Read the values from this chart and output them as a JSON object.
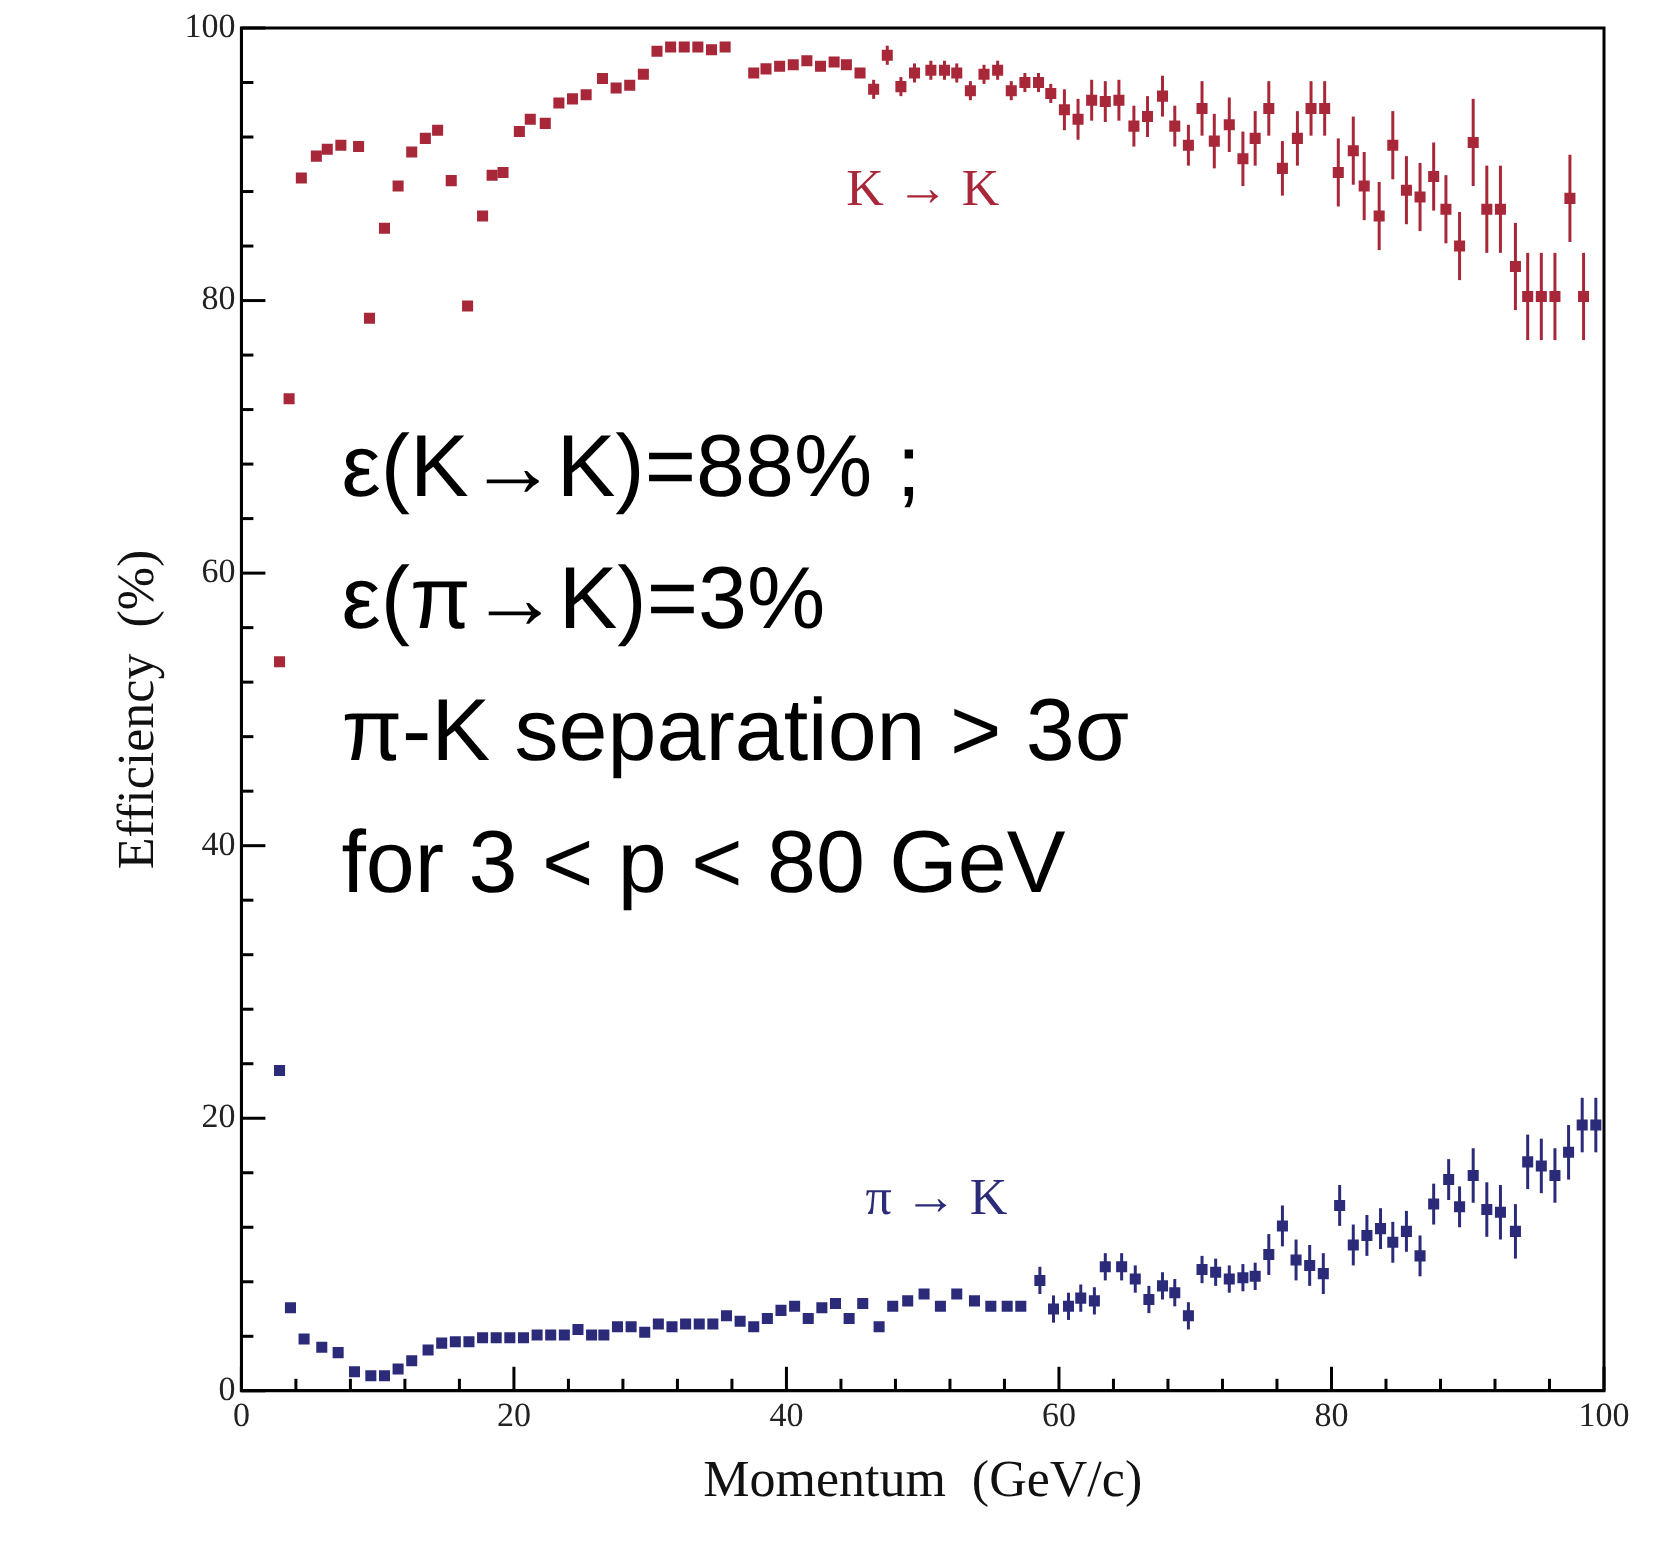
{
  "chart_data": {
    "type": "scatter",
    "xlabel": "Momentum  (GeV/c)",
    "ylabel": "Efficiency  (%)",
    "xlim": [
      0,
      100
    ],
    "ylim": [
      0,
      100
    ],
    "xticks": [
      0,
      {
        "value": 4,
        "label": null
      },
      {
        "value": 8,
        "label": null
      },
      {
        "value": 12,
        "label": null
      },
      {
        "value": 16,
        "label": null
      },
      20,
      {
        "value": 24,
        "label": null
      },
      {
        "value": 28,
        "label": null
      },
      {
        "value": 32,
        "label": null
      },
      {
        "value": 36,
        "label": null
      },
      40,
      {
        "value": 44,
        "label": null
      },
      {
        "value": 48,
        "label": null
      },
      {
        "value": 52,
        "label": null
      },
      {
        "value": 56,
        "label": null
      },
      60,
      {
        "value": 64,
        "label": null
      },
      {
        "value": 68,
        "label": null
      },
      {
        "value": 72,
        "label": null
      },
      {
        "value": 76,
        "label": null
      },
      80,
      {
        "value": 84,
        "label": null
      },
      {
        "value": 88,
        "label": null
      },
      {
        "value": 92,
        "label": null
      },
      {
        "value": 96,
        "label": null
      },
      100
    ],
    "yticks": [
      0,
      {
        "value": 4,
        "label": null
      },
      {
        "value": 8,
        "label": null
      },
      {
        "value": 12,
        "label": null
      },
      {
        "value": 16,
        "label": null
      },
      20,
      {
        "value": 24,
        "label": null
      },
      {
        "value": 28,
        "label": null
      },
      {
        "value": 32,
        "label": null
      },
      {
        "value": 36,
        "label": null
      },
      40,
      {
        "value": 44,
        "label": null
      },
      {
        "value": 48,
        "label": null
      },
      {
        "value": 52,
        "label": null
      },
      {
        "value": 56,
        "label": null
      },
      60,
      {
        "value": 64,
        "label": null
      },
      {
        "value": 68,
        "label": null
      },
      {
        "value": 72,
        "label": null
      },
      {
        "value": 76,
        "label": null
      },
      80,
      {
        "value": 84,
        "label": null
      },
      {
        "value": 88,
        "label": null
      },
      {
        "value": 92,
        "label": null
      },
      {
        "value": 96,
        "label": null
      },
      100
    ],
    "grid": false,
    "legend": false,
    "marker": "square",
    "series": [
      {
        "color": "#a8283a",
        "x": [
          2.8,
          3.5,
          4.4,
          5.5,
          6.3,
          7.3,
          8.6,
          9.4,
          10.5,
          11.5,
          12.5,
          13.5,
          14.4,
          15.4,
          16.6,
          17.7,
          18.4,
          19.2,
          20.4,
          21.2,
          22.3,
          23.3,
          24.3,
          25.3,
          26.5,
          27.5,
          28.5,
          29.5,
          30.5,
          31.5,
          32.5,
          33.5,
          34.5,
          35.5,
          37.6,
          38.5,
          39.5,
          40.5,
          41.5,
          42.5,
          43.5,
          44.4,
          45.4,
          46.4,
          47.4,
          48.4,
          49.4,
          50.6,
          51.6,
          52.5,
          53.5,
          54.5,
          55.5,
          56.5,
          57.5,
          58.5,
          59.4,
          60.4,
          61.4,
          62.4,
          63.4,
          64.4,
          65.5,
          66.5,
          67.6,
          68.5,
          69.5,
          70.5,
          71.4,
          72.5,
          73.5,
          74.4,
          75.4,
          76.4,
          77.5,
          78.5,
          79.5,
          80.5,
          81.6,
          82.4,
          83.5,
          84.5,
          85.5,
          86.5,
          87.5,
          88.4,
          89.4,
          90.4,
          91.4,
          92.4,
          93.5,
          94.4,
          95.4,
          96.4,
          97.5,
          98.5
        ],
        "values": [
          53.5,
          72.8,
          89.0,
          90.6,
          91.1,
          91.4,
          91.3,
          78.7,
          85.3,
          88.4,
          90.9,
          91.9,
          92.5,
          88.8,
          79.6,
          86.2,
          89.2,
          89.4,
          92.4,
          93.3,
          93.0,
          94.5,
          94.8,
          95.1,
          96.3,
          95.6,
          95.8,
          96.6,
          98.3,
          98.6,
          98.6,
          98.6,
          98.4,
          98.6,
          96.7,
          97.0,
          97.2,
          97.3,
          97.6,
          97.2,
          97.5,
          97.3,
          96.7,
          95.5,
          98.0,
          95.7,
          96.7,
          96.9,
          96.9,
          96.7,
          95.4,
          96.6,
          96.9,
          95.4,
          96.0,
          96.0,
          95.2,
          94.0,
          93.3,
          94.7,
          94.6,
          94.7,
          92.8,
          93.5,
          95.0,
          92.8,
          91.4,
          94.1,
          91.7,
          92.9,
          90.4,
          91.9,
          94.1,
          89.7,
          91.9,
          94.1,
          94.1,
          89.4,
          91.0,
          88.4,
          86.2,
          91.4,
          88.1,
          87.6,
          89.1,
          86.7,
          84.0,
          91.6,
          86.7,
          86.7,
          82.5,
          80.3,
          80.3,
          80.3,
          87.5,
          80.3
        ],
        "errors": [
          null,
          null,
          null,
          null,
          null,
          null,
          null,
          null,
          null,
          null,
          null,
          null,
          null,
          null,
          null,
          null,
          null,
          null,
          null,
          null,
          null,
          null,
          null,
          null,
          null,
          null,
          null,
          null,
          null,
          null,
          null,
          null,
          null,
          null,
          null,
          null,
          null,
          null,
          null,
          null,
          null,
          null,
          null,
          0.7,
          0.7,
          0.7,
          0.7,
          0.7,
          0.7,
          0.7,
          0.7,
          0.7,
          0.7,
          0.7,
          0.7,
          0.7,
          0.7,
          1.5,
          1.5,
          1.5,
          1.5,
          1.5,
          1.5,
          1.5,
          1.5,
          1.5,
          1.5,
          2,
          2,
          2,
          2,
          2,
          2,
          2,
          2,
          2,
          2,
          2.5,
          2.5,
          2.5,
          2.5,
          2.5,
          2.5,
          2.5,
          2.5,
          2.5,
          2.5,
          3.2,
          3.2,
          3.2,
          3.2,
          3.2,
          3.2,
          3.2,
          3.2,
          3.2
        ]
      },
      {
        "color": "#2b2b7a",
        "x": [
          2.8,
          3.6,
          4.6,
          5.9,
          7.1,
          8.3,
          9.5,
          10.5,
          11.5,
          12.5,
          13.7,
          14.7,
          15.7,
          16.7,
          17.7,
          18.7,
          19.7,
          20.7,
          21.7,
          22.7,
          23.7,
          24.7,
          25.7,
          26.6,
          27.6,
          28.6,
          29.6,
          30.6,
          31.6,
          32.6,
          33.6,
          34.6,
          35.6,
          36.6,
          37.6,
          38.6,
          39.6,
          40.6,
          41.6,
          42.6,
          43.6,
          44.6,
          45.6,
          46.8,
          47.8,
          48.9,
          50.1,
          51.3,
          52.5,
          53.8,
          55.0,
          56.2,
          57.2,
          58.6,
          59.6,
          60.7,
          61.6,
          62.6,
          63.4,
          64.6,
          65.6,
          66.6,
          67.6,
          68.5,
          69.5,
          70.5,
          71.5,
          72.5,
          73.5,
          74.4,
          75.4,
          76.4,
          77.4,
          78.4,
          79.4,
          80.6,
          81.6,
          82.6,
          83.6,
          84.5,
          85.5,
          86.5,
          87.5,
          88.6,
          89.4,
          90.4,
          91.4,
          92.4,
          93.5,
          94.4,
          95.4,
          96.4,
          97.4,
          98.4,
          99.4
        ],
        "values": [
          23.5,
          6.1,
          3.8,
          3.2,
          2.8,
          1.4,
          1.1,
          1.1,
          1.6,
          2.2,
          3.0,
          3.5,
          3.6,
          3.6,
          3.9,
          3.9,
          3.9,
          3.9,
          4.1,
          4.1,
          4.1,
          4.5,
          4.1,
          4.1,
          4.7,
          4.7,
          4.3,
          4.9,
          4.7,
          4.9,
          4.9,
          4.9,
          5.5,
          5.1,
          4.7,
          5.3,
          5.9,
          6.2,
          5.3,
          6.1,
          6.4,
          5.3,
          6.4,
          4.7,
          6.2,
          6.6,
          7.1,
          6.2,
          7.1,
          6.6,
          6.2,
          6.2,
          6.2,
          8.1,
          6.0,
          6.2,
          6.8,
          6.6,
          9.1,
          9.1,
          8.2,
          6.7,
          7.7,
          7.2,
          5.5,
          8.9,
          8.7,
          8.2,
          8.3,
          8.4,
          10.0,
          12.1,
          9.6,
          9.2,
          8.6,
          13.6,
          10.7,
          11.4,
          11.9,
          10.9,
          11.7,
          9.9,
          13.7,
          15.5,
          13.5,
          15.8,
          13.3,
          13.1,
          11.7,
          16.8,
          16.5,
          15.8,
          17.5,
          19.5,
          19.5
        ],
        "errors": [
          null,
          null,
          null,
          null,
          null,
          null,
          null,
          null,
          null,
          null,
          null,
          null,
          null,
          null,
          null,
          null,
          null,
          null,
          null,
          null,
          null,
          null,
          null,
          null,
          null,
          null,
          null,
          null,
          null,
          null,
          null,
          null,
          null,
          null,
          null,
          null,
          null,
          null,
          null,
          null,
          null,
          null,
          null,
          null,
          null,
          null,
          null,
          null,
          null,
          null,
          null,
          null,
          null,
          1,
          1,
          1,
          1,
          1,
          1,
          1,
          1,
          1,
          1,
          1,
          1,
          1,
          1,
          1,
          1,
          1,
          1.5,
          1.5,
          1.5,
          1.5,
          1.5,
          1.5,
          1.5,
          1.5,
          1.5,
          1.5,
          1.5,
          1.5,
          1.5,
          1.5,
          1.5,
          2,
          2,
          2,
          2,
          2,
          2,
          2,
          2,
          2,
          2
        ]
      }
    ],
    "annotations": [
      "K → K",
      "π → K",
      "ε(K→K)=88% ;",
      "ε(π→K)=3%",
      "π-K separation > 3σ",
      "for 3 < p < 80 GeV"
    ]
  }
}
